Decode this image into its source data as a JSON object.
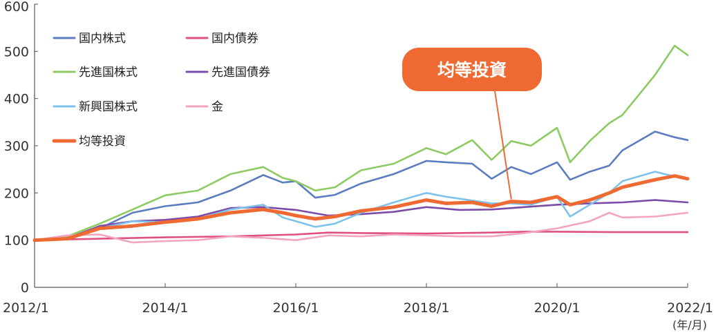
{
  "chart_data": {
    "type": "line",
    "title": "",
    "xlabel": "",
    "ylabel": "",
    "x_unit_label": "(年/月)",
    "ylim": [
      0,
      600
    ],
    "yticks": [
      0,
      100,
      200,
      300,
      400,
      500,
      600
    ],
    "xlim": [
      "2012/1",
      "2022/1"
    ],
    "xticks": [
      "2012/1",
      "2014/1",
      "2016/1",
      "2018/1",
      "2020/1",
      "2022/1"
    ],
    "legend_position": "top-left",
    "grid": false,
    "callout": {
      "text": "均等投資",
      "color": "#EE6A32",
      "points_to_series": "均等投資",
      "points_to_x": 2019.3
    },
    "series": [
      {
        "name": "国内株式",
        "color": "#5B7CC0",
        "points": [
          [
            2012,
            100
          ],
          [
            2012.5,
            102
          ],
          [
            2013,
            125
          ],
          [
            2013.5,
            158
          ],
          [
            2014,
            172
          ],
          [
            2014.5,
            180
          ],
          [
            2015,
            205
          ],
          [
            2015.5,
            238
          ],
          [
            2015.8,
            222
          ],
          [
            2016,
            225
          ],
          [
            2016.3,
            190
          ],
          [
            2016.6,
            196
          ],
          [
            2017,
            220
          ],
          [
            2017.5,
            240
          ],
          [
            2018,
            268
          ],
          [
            2018.3,
            265
          ],
          [
            2018.7,
            262
          ],
          [
            2019,
            230
          ],
          [
            2019.3,
            255
          ],
          [
            2019.6,
            240
          ],
          [
            2020,
            265
          ],
          [
            2020.2,
            228
          ],
          [
            2020.5,
            245
          ],
          [
            2020.8,
            258
          ],
          [
            2021,
            290
          ],
          [
            2021.5,
            330
          ],
          [
            2021.8,
            318
          ],
          [
            2022,
            312
          ]
        ]
      },
      {
        "name": "国内債券",
        "color": "#E0507E",
        "points": [
          [
            2012,
            100
          ],
          [
            2013,
            103
          ],
          [
            2014,
            106
          ],
          [
            2015,
            108
          ],
          [
            2016,
            112
          ],
          [
            2016.5,
            116
          ],
          [
            2017,
            115
          ],
          [
            2018,
            114
          ],
          [
            2019,
            116
          ],
          [
            2019.5,
            118
          ],
          [
            2020,
            118
          ],
          [
            2021,
            117
          ],
          [
            2022,
            117
          ]
        ]
      },
      {
        "name": "先進国株式",
        "color": "#8CCB62",
        "points": [
          [
            2012,
            100
          ],
          [
            2012.5,
            108
          ],
          [
            2013,
            135
          ],
          [
            2013.5,
            165
          ],
          [
            2014,
            195
          ],
          [
            2014.5,
            205
          ],
          [
            2015,
            240
          ],
          [
            2015.5,
            255
          ],
          [
            2015.8,
            232
          ],
          [
            2016,
            225
          ],
          [
            2016.3,
            205
          ],
          [
            2016.6,
            212
          ],
          [
            2017,
            248
          ],
          [
            2017.5,
            262
          ],
          [
            2018,
            295
          ],
          [
            2018.3,
            282
          ],
          [
            2018.7,
            312
          ],
          [
            2019,
            270
          ],
          [
            2019.3,
            310
          ],
          [
            2019.6,
            300
          ],
          [
            2020,
            338
          ],
          [
            2020.2,
            265
          ],
          [
            2020.5,
            310
          ],
          [
            2020.8,
            348
          ],
          [
            2021,
            365
          ],
          [
            2021.5,
            450
          ],
          [
            2021.8,
            512
          ],
          [
            2022,
            492
          ]
        ]
      },
      {
        "name": "先進国債券",
        "color": "#7B4BA8",
        "points": [
          [
            2012,
            100
          ],
          [
            2012.5,
            104
          ],
          [
            2013,
            130
          ],
          [
            2013.5,
            140
          ],
          [
            2014,
            143
          ],
          [
            2014.5,
            150
          ],
          [
            2015,
            168
          ],
          [
            2015.5,
            170
          ],
          [
            2016,
            164
          ],
          [
            2016.5,
            152
          ],
          [
            2017,
            155
          ],
          [
            2017.5,
            160
          ],
          [
            2018,
            170
          ],
          [
            2018.5,
            164
          ],
          [
            2019,
            165
          ],
          [
            2019.5,
            170
          ],
          [
            2020,
            175
          ],
          [
            2020.5,
            178
          ],
          [
            2021,
            180
          ],
          [
            2021.5,
            185
          ],
          [
            2022,
            180
          ]
        ]
      },
      {
        "name": "新興国株式",
        "color": "#7EC2EA",
        "points": [
          [
            2012,
            100
          ],
          [
            2012.5,
            103
          ],
          [
            2013,
            125
          ],
          [
            2013.5,
            140
          ],
          [
            2014,
            138
          ],
          [
            2014.5,
            145
          ],
          [
            2015,
            165
          ],
          [
            2015.5,
            175
          ],
          [
            2015.8,
            148
          ],
          [
            2016,
            140
          ],
          [
            2016.3,
            128
          ],
          [
            2016.6,
            135
          ],
          [
            2017,
            158
          ],
          [
            2017.5,
            180
          ],
          [
            2018,
            200
          ],
          [
            2018.3,
            192
          ],
          [
            2018.7,
            184
          ],
          [
            2019,
            178
          ],
          [
            2019.3,
            178
          ],
          [
            2019.6,
            175
          ],
          [
            2020,
            192
          ],
          [
            2020.2,
            150
          ],
          [
            2020.5,
            175
          ],
          [
            2020.8,
            200
          ],
          [
            2021,
            225
          ],
          [
            2021.5,
            245
          ],
          [
            2021.8,
            235
          ],
          [
            2022,
            230
          ]
        ]
      },
      {
        "name": "金",
        "color": "#F2A4C0",
        "points": [
          [
            2012,
            100
          ],
          [
            2012.5,
            110
          ],
          [
            2013,
            112
          ],
          [
            2013.5,
            95
          ],
          [
            2014,
            98
          ],
          [
            2014.5,
            100
          ],
          [
            2015,
            108
          ],
          [
            2015.5,
            105
          ],
          [
            2016,
            100
          ],
          [
            2016.5,
            110
          ],
          [
            2017,
            108
          ],
          [
            2017.5,
            112
          ],
          [
            2018,
            110
          ],
          [
            2018.5,
            108
          ],
          [
            2019,
            108
          ],
          [
            2019.5,
            115
          ],
          [
            2020,
            125
          ],
          [
            2020.5,
            140
          ],
          [
            2020.8,
            158
          ],
          [
            2021,
            148
          ],
          [
            2021.5,
            150
          ],
          [
            2022,
            158
          ]
        ]
      },
      {
        "name": "均等投資",
        "color": "#EE6A32",
        "points": [
          [
            2012,
            100
          ],
          [
            2012.5,
            103
          ],
          [
            2013,
            125
          ],
          [
            2013.5,
            130
          ],
          [
            2014,
            138
          ],
          [
            2014.5,
            145
          ],
          [
            2015,
            158
          ],
          [
            2015.5,
            165
          ],
          [
            2015.8,
            158
          ],
          [
            2016,
            152
          ],
          [
            2016.3,
            145
          ],
          [
            2016.6,
            150
          ],
          [
            2017,
            162
          ],
          [
            2017.5,
            170
          ],
          [
            2018,
            185
          ],
          [
            2018.3,
            178
          ],
          [
            2018.7,
            180
          ],
          [
            2019,
            172
          ],
          [
            2019.3,
            182
          ],
          [
            2019.6,
            180
          ],
          [
            2020,
            192
          ],
          [
            2020.2,
            175
          ],
          [
            2020.5,
            185
          ],
          [
            2020.8,
            200
          ],
          [
            2021,
            212
          ],
          [
            2021.5,
            228
          ],
          [
            2021.8,
            236
          ],
          [
            2022,
            230
          ]
        ]
      }
    ]
  }
}
